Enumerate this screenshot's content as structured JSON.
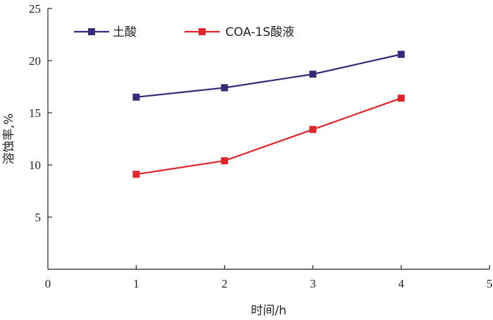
{
  "chart_data": {
    "type": "line",
    "x": [
      1,
      2,
      3,
      4
    ],
    "series": [
      {
        "name": "土酸",
        "values": [
          16.5,
          17.4,
          18.7,
          20.6
        ],
        "color": "#3a2a7a"
      },
      {
        "name": "COA-1S酸液",
        "values": [
          9.1,
          10.4,
          13.4,
          16.4
        ],
        "color": "#e0262b"
      }
    ],
    "xlabel": "时间/h",
    "ylabel": "溶蚀率,%",
    "xlim": [
      0,
      5
    ],
    "ylim": [
      0,
      25
    ],
    "xticks": [
      "0",
      "1",
      "2",
      "3",
      "4",
      "5"
    ],
    "yticks": [
      "5",
      "10",
      "15",
      "20",
      "25"
    ],
    "legend_position": "top-left",
    "grid": false
  }
}
